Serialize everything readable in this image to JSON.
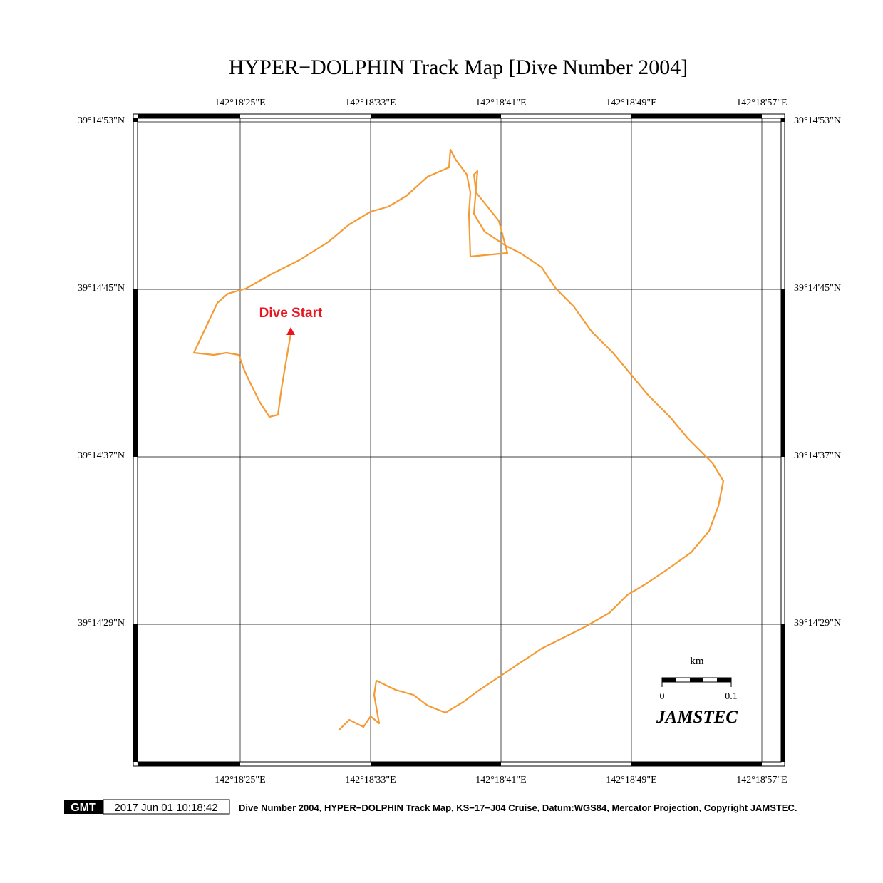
{
  "title": "HYPER−DOLPHIN Track Map [Dive Number 2004]",
  "longitude_labels": [
    "142°18'25\"E",
    "142°18'33\"E",
    "142°18'41\"E",
    "142°18'49\"E",
    "142°18'57\"E"
  ],
  "latitude_labels": [
    "39°14'53\"N",
    "39°14'45\"N",
    "39°14'37\"N",
    "39°14'29\"N"
  ],
  "marker_label": "Dive Start",
  "scale_bar": {
    "unit": "km",
    "start": "0",
    "end": "0.1"
  },
  "logo_text": "JAMSTEC",
  "footer": {
    "badge": "GMT",
    "timestamp": "2017 Jun 01 10:18:42",
    "caption": "Dive Number 2004, HYPER−DOLPHIN Track Map, KS−17−J04 Cruise, Datum:WGS84, Mercator Projection, Copyright JAMSTEC."
  }
}
